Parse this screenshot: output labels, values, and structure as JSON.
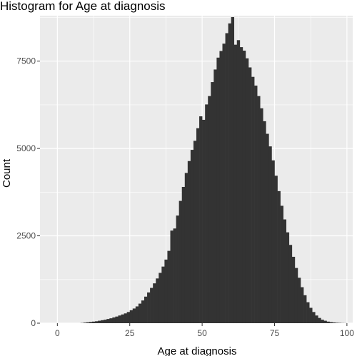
{
  "chart_data": {
    "type": "bar",
    "title": "Histogram for Age at diagnosis",
    "xlabel": "Age at diagnosis",
    "ylabel": "Count",
    "xlim": [
      -6,
      102
    ],
    "ylim": [
      0,
      8800
    ],
    "xticks": [
      0,
      25,
      50,
      75,
      100
    ],
    "xtick_labels": [
      "0",
      "25",
      "50",
      "75",
      "100"
    ],
    "yticks": [
      0,
      2500,
      5000,
      7500
    ],
    "ytick_labels": [
      "0",
      "2500",
      "5000",
      "7500"
    ],
    "grid": true,
    "bin_start": 0,
    "bin_width": 1,
    "values": [
      0,
      0,
      0,
      0,
      0,
      0,
      0,
      0,
      5,
      15,
      25,
      35,
      45,
      55,
      70,
      85,
      100,
      120,
      140,
      165,
      190,
      220,
      250,
      280,
      320,
      370,
      420,
      480,
      560,
      650,
      760,
      880,
      1010,
      1140,
      1280,
      1440,
      1620,
      1820,
      2070,
      2650,
      2710,
      3080,
      3500,
      3900,
      4300,
      4640,
      4960,
      5220,
      5580,
      5920,
      5820,
      6260,
      6500,
      6900,
      7260,
      7600,
      7790,
      8000,
      8300,
      8580,
      8760,
      7970,
      8100,
      7900,
      7800,
      7580,
      7320,
      7050,
      6800,
      6500,
      6150,
      5780,
      5420,
      5060,
      4660,
      4220,
      3780,
      3360,
      2970,
      2600,
      2240,
      1900,
      1580,
      1300,
      1030,
      800,
      600,
      440,
      320,
      220,
      150,
      100,
      70,
      45,
      30,
      20,
      12,
      8,
      4,
      2
    ]
  },
  "colors": {
    "panel": "#ebebeb",
    "grid": "#ffffff",
    "bar": "#333333"
  }
}
